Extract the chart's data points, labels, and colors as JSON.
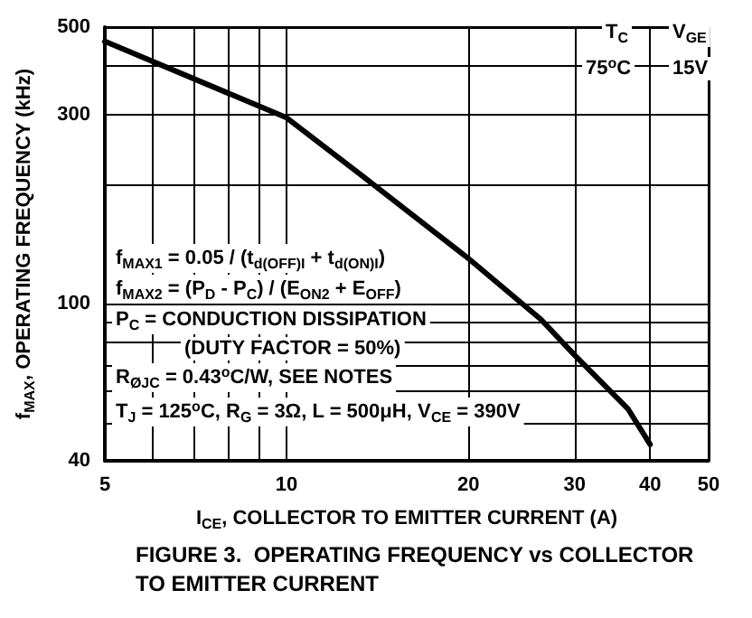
{
  "chart_data": {
    "type": "line",
    "title": "FIGURE 3.  OPERATING FREQUENCY vs COLLECTOR TO EMITTER CURRENT",
    "xlabel": "I$_{CE}$, COLLECTOR TO EMITTER CURRENT (A)",
    "ylabel": "f$_{MAX}$, OPERATING FREQUENCY (kHz)",
    "x": [
      5,
      10,
      13.3,
      20,
      26.4,
      30,
      36.8,
      40
    ],
    "series": [
      {
        "color": "#000000",
        "values": [
          460,
          295,
          211,
          130,
          91,
          74,
          54,
          44
        ]
      }
    ],
    "log": "xy",
    "xlim": [
      5,
      50
    ],
    "ylim": [
      40,
      500
    ],
    "xticks": [
      5,
      {
        "value": 6,
        "label": null
      },
      {
        "value": 7,
        "label": null
      },
      {
        "value": 8,
        "label": null
      },
      {
        "value": 9,
        "label": null
      },
      10,
      20,
      30,
      40,
      50
    ],
    "yticks": [
      40,
      {
        "value": 50,
        "label": null
      },
      {
        "value": 60,
        "label": null
      },
      {
        "value": 70,
        "label": null
      },
      {
        "value": 80,
        "label": null
      },
      {
        "value": 90,
        "label": null
      },
      100,
      {
        "value": 200,
        "label": null
      },
      300,
      {
        "value": 400,
        "label": null
      },
      500
    ],
    "grid": true,
    "marker": "none",
    "line_style": "solid",
    "annotations": [
      "f$_{MAX1}$ = 0.05 / (t$_{d(OFF)I}$ + t$_{d(ON)I}$)",
      "f$_{MAX2}$ = (P$_{D}$ - P$_{C}$) / (E$_{ON2}$ + E$_{OFF}$)",
      "P$_{C}$ = CONDUCTION DISSIPATION",
      "(DUTY FACTOR = 50%)",
      "R$_{ØJC}$ = 0.43$^{o}$C/W, SEE NOTES",
      "T$_{J}$ = 125$^{o}$C, R$_{G}$ = 3Ω, L = 500μH, V$_{CE}$ = 390V",
      "T$_{C}$",
      "75$^{o}$C",
      "V$_{GE}$",
      "15V"
    ]
  }
}
